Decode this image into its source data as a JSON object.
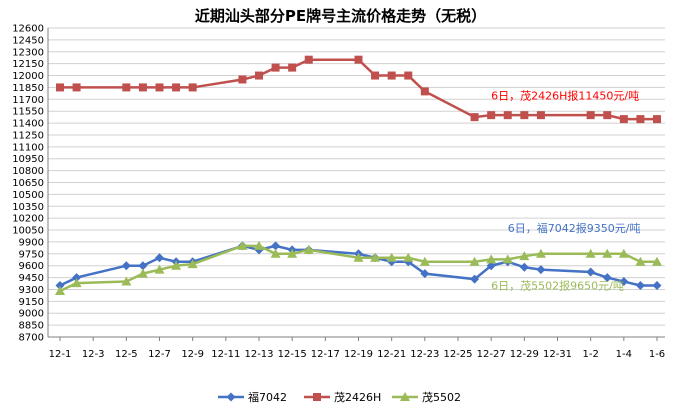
{
  "chart_data": {
    "type": "line",
    "title": "近期汕头部分PE牌号主流价格走势（无税）",
    "xlabel": "",
    "ylabel": "",
    "ylim": [
      8700,
      12600
    ],
    "y_ticks": [
      8700,
      8850,
      9000,
      9150,
      9300,
      9450,
      9600,
      9750,
      9900,
      10050,
      10200,
      10350,
      10500,
      10650,
      10800,
      10950,
      11100,
      11250,
      11400,
      11550,
      11700,
      11850,
      12000,
      12150,
      12300,
      12450,
      12600
    ],
    "x_dates": [
      "12-1",
      "12-2",
      "12-3",
      "12-4",
      "12-5",
      "12-6",
      "12-7",
      "12-8",
      "12-9",
      "12-10",
      "12-11",
      "12-12",
      "12-13",
      "12-14",
      "12-15",
      "12-16",
      "12-17",
      "12-18",
      "12-19",
      "12-20",
      "12-21",
      "12-22",
      "12-23",
      "12-24",
      "12-25",
      "12-26",
      "12-27",
      "12-28",
      "12-29",
      "12-30",
      "12-31",
      "1-1",
      "1-2",
      "1-3",
      "1-4",
      "1-5",
      "1-6"
    ],
    "x_tick_labels": [
      "12-1",
      "12-3",
      "12-5",
      "12-7",
      "12-9",
      "12-11",
      "12-13",
      "12-15",
      "12-17",
      "12-19",
      "12-21",
      "12-23",
      "12-25",
      "12-27",
      "12-29",
      "12-31",
      "1-2",
      "1-4",
      "1-6"
    ],
    "grid": true,
    "legend": "bottom",
    "series": [
      {
        "name": "福7042",
        "color": "#4472C4",
        "marker": "diamond",
        "points": [
          [
            "12-1",
            9350
          ],
          [
            "12-2",
            9450
          ],
          [
            "12-5",
            9600
          ],
          [
            "12-6",
            9600
          ],
          [
            "12-7",
            9700
          ],
          [
            "12-8",
            9650
          ],
          [
            "12-9",
            9650
          ],
          [
            "12-12",
            9850
          ],
          [
            "12-13",
            9800
          ],
          [
            "12-14",
            9850
          ],
          [
            "12-15",
            9800
          ],
          [
            "12-16",
            9800
          ],
          [
            "12-19",
            9750
          ],
          [
            "12-20",
            9700
          ],
          [
            "12-21",
            9650
          ],
          [
            "12-22",
            9650
          ],
          [
            "12-23",
            9500
          ],
          [
            "12-26",
            9430
          ],
          [
            "12-27",
            9600
          ],
          [
            "12-28",
            9650
          ],
          [
            "12-29",
            9580
          ],
          [
            "12-30",
            9550
          ],
          [
            "1-2",
            9520
          ],
          [
            "1-3",
            9450
          ],
          [
            "1-4",
            9400
          ],
          [
            "1-5",
            9350
          ],
          [
            "1-6",
            9350
          ]
        ]
      },
      {
        "name": "茂2426H",
        "color": "#C0504D",
        "marker": "square",
        "points": [
          [
            "12-1",
            11850
          ],
          [
            "12-2",
            11850
          ],
          [
            "12-5",
            11850
          ],
          [
            "12-6",
            11850
          ],
          [
            "12-7",
            11850
          ],
          [
            "12-8",
            11850
          ],
          [
            "12-9",
            11850
          ],
          [
            "12-12",
            11950
          ],
          [
            "12-13",
            12000
          ],
          [
            "12-14",
            12100
          ],
          [
            "12-15",
            12100
          ],
          [
            "12-16",
            12200
          ],
          [
            "12-19",
            12200
          ],
          [
            "12-20",
            12000
          ],
          [
            "12-21",
            12000
          ],
          [
            "12-22",
            12000
          ],
          [
            "12-23",
            11800
          ],
          [
            "12-26",
            11475
          ],
          [
            "12-27",
            11500
          ],
          [
            "12-28",
            11500
          ],
          [
            "12-29",
            11500
          ],
          [
            "12-30",
            11500
          ],
          [
            "1-2",
            11500
          ],
          [
            "1-3",
            11500
          ],
          [
            "1-4",
            11450
          ],
          [
            "1-5",
            11450
          ],
          [
            "1-6",
            11450
          ]
        ]
      },
      {
        "name": "茂5502",
        "color": "#9BBB59",
        "marker": "triangle",
        "points": [
          [
            "12-1",
            9280
          ],
          [
            "12-2",
            9380
          ],
          [
            "12-5",
            9400
          ],
          [
            "12-6",
            9500
          ],
          [
            "12-7",
            9550
          ],
          [
            "12-8",
            9600
          ],
          [
            "12-9",
            9620
          ],
          [
            "12-12",
            9850
          ],
          [
            "12-13",
            9850
          ],
          [
            "12-14",
            9750
          ],
          [
            "12-15",
            9750
          ],
          [
            "12-16",
            9800
          ],
          [
            "12-19",
            9700
          ],
          [
            "12-20",
            9700
          ],
          [
            "12-21",
            9700
          ],
          [
            "12-22",
            9700
          ],
          [
            "12-23",
            9650
          ],
          [
            "12-26",
            9650
          ],
          [
            "12-27",
            9680
          ],
          [
            "12-28",
            9680
          ],
          [
            "12-29",
            9720
          ],
          [
            "12-30",
            9750
          ],
          [
            "1-2",
            9750
          ],
          [
            "1-3",
            9750
          ],
          [
            "1-4",
            9750
          ],
          [
            "1-5",
            9650
          ],
          [
            "1-6",
            9650
          ]
        ]
      }
    ],
    "annotations": [
      {
        "text": "6日，茂2426H报11450元/吨",
        "color": "#FF0000",
        "at": [
          "12-27",
          11700
        ]
      },
      {
        "text": "6日，福7042报9350元/吨",
        "color": "#4472C4",
        "at": [
          "12-28",
          10025
        ]
      },
      {
        "text": "6日，茂5502报9650元/吨",
        "color": "#9BBB59",
        "at": [
          "12-27",
          9300
        ]
      }
    ]
  }
}
